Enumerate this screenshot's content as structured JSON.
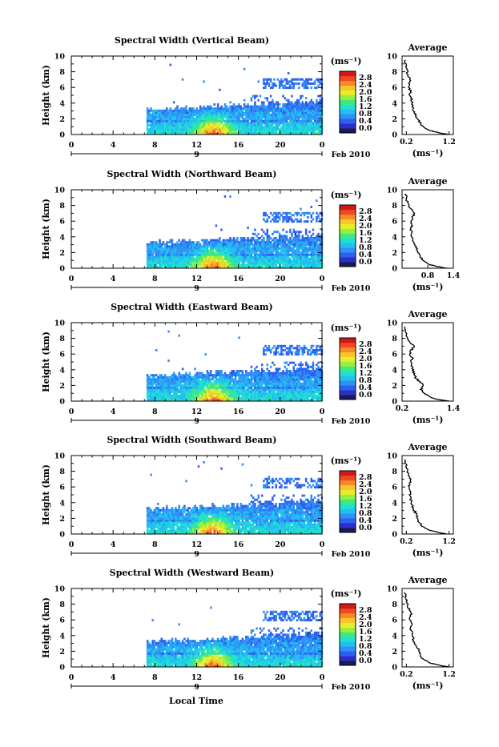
{
  "figure": {
    "xlabel": "Local Time",
    "date_label": "Feb 2010",
    "day_label": "9",
    "colorbar": {
      "unit_label": "(ms⁻¹)",
      "ticks": [
        "2.8",
        "2.4",
        "2.0",
        "1.6",
        "1.2",
        "0.8",
        "0.4",
        "0.0"
      ],
      "colors": [
        "#1a1a55",
        "#2b2fc9",
        "#2f5ff0",
        "#2f90f5",
        "#22c0f0",
        "#22e0d0",
        "#40e880",
        "#98ef40",
        "#e6ee2c",
        "#f8c62a",
        "#f58a26",
        "#ee4a22",
        "#d01818"
      ]
    },
    "average_title": "Average",
    "average_unit": "(ms⁻¹)"
  },
  "chart_data": [
    {
      "type": "heatmap",
      "title": "Spectral Width (Vertical Beam)",
      "xlabel": "Local Time",
      "ylabel": "Height (km)",
      "xlim": [
        0,
        24
      ],
      "ylim": [
        0,
        10
      ],
      "xticks": [
        "0",
        "4",
        "8",
        "12",
        "16",
        "20",
        "0"
      ],
      "yticks": [
        "10",
        "8",
        "6",
        "4",
        "2",
        "0"
      ],
      "data_start_hour": 7.2,
      "profile": {
        "title": "Average",
        "xlabel": "(ms⁻¹)",
        "xlim": [
          0.1,
          1.3
        ],
        "xticks": [
          "0.2",
          "1.2"
        ],
        "height": [
          0,
          0.25,
          0.5,
          1,
          1.5,
          2,
          2.5,
          3,
          3.5,
          4,
          4.5,
          5,
          5.5,
          6,
          6.5,
          7,
          7.5,
          8,
          8.5,
          9,
          9.5
        ],
        "width": [
          1.18,
          0.95,
          0.75,
          0.6,
          0.52,
          0.45,
          0.42,
          0.38,
          0.36,
          0.34,
          0.32,
          0.28,
          0.3,
          0.26,
          0.27,
          0.28,
          0.24,
          0.22,
          0.2,
          0.18,
          0.16
        ]
      }
    },
    {
      "type": "heatmap",
      "title": "Spectral Width (Northward Beam)",
      "xlabel": "Local Time",
      "ylabel": "Height (km)",
      "xlim": [
        0,
        24
      ],
      "ylim": [
        0,
        10
      ],
      "xticks": [
        "0",
        "4",
        "8",
        "12",
        "16",
        "20",
        "0"
      ],
      "yticks": [
        "10",
        "8",
        "6",
        "4",
        "2",
        "0"
      ],
      "data_start_hour": 7.2,
      "profile": {
        "title": "Average",
        "xlabel": "(ms⁻¹)",
        "xlim": [
          0.2,
          1.4
        ],
        "xticks": [
          "0.8",
          "1.4"
        ],
        "height": [
          0,
          0.25,
          0.5,
          1,
          1.5,
          2,
          2.5,
          3,
          3.5,
          4,
          4.5,
          5,
          5.5,
          6,
          6.5,
          7,
          7.5,
          8,
          8.5,
          9,
          9.5
        ],
        "width": [
          1.25,
          1.0,
          0.82,
          0.7,
          0.62,
          0.58,
          0.55,
          0.5,
          0.46,
          0.44,
          0.42,
          0.4,
          0.43,
          0.4,
          0.45,
          0.5,
          0.42,
          0.36,
          0.32,
          0.3,
          0.28
        ]
      }
    },
    {
      "type": "heatmap",
      "title": "Spectral Width (Eastward Beam)",
      "xlabel": "Local Time",
      "ylabel": "Height (km)",
      "xlim": [
        0,
        24
      ],
      "ylim": [
        0,
        10
      ],
      "xticks": [
        "0",
        "4",
        "8",
        "12",
        "16",
        "20",
        "0"
      ],
      "yticks": [
        "10",
        "8",
        "6",
        "4",
        "2",
        "0"
      ],
      "data_start_hour": 7.2,
      "profile": {
        "title": "Average",
        "xlabel": "(ms⁻¹)",
        "xlim": [
          0.2,
          1.4
        ],
        "xticks": [
          "0.2",
          "1.4"
        ],
        "height": [
          0,
          0.25,
          0.5,
          1,
          1.5,
          2,
          2.5,
          3,
          3.5,
          4,
          4.5,
          5,
          5.5,
          6,
          6.5,
          7,
          7.5,
          8,
          8.5,
          9,
          9.5
        ],
        "width": [
          1.3,
          1.0,
          0.85,
          0.72,
          0.64,
          0.7,
          0.6,
          0.52,
          0.48,
          0.46,
          0.42,
          0.4,
          0.44,
          0.38,
          0.42,
          0.48,
          0.36,
          0.32,
          0.3,
          0.28,
          0.26
        ]
      }
    },
    {
      "type": "heatmap",
      "title": "Spectral Width (Southward Beam)",
      "xlabel": "Local Time",
      "ylabel": "Height (km)",
      "xlim": [
        0,
        24
      ],
      "ylim": [
        0,
        10
      ],
      "xticks": [
        "0",
        "4",
        "8",
        "12",
        "16",
        "20",
        "0"
      ],
      "yticks": [
        "10",
        "8",
        "6",
        "4",
        "2",
        "0"
      ],
      "data_start_hour": 7.2,
      "profile": {
        "title": "Average",
        "xlabel": "(ms⁻¹)",
        "xlim": [
          0.1,
          1.3
        ],
        "xticks": [
          "0.2",
          "1.2"
        ],
        "height": [
          0,
          0.25,
          0.5,
          1,
          1.5,
          2,
          2.5,
          3,
          3.5,
          4,
          4.5,
          5,
          5.5,
          6,
          6.5,
          7,
          7.5,
          8,
          8.5,
          9,
          9.5
        ],
        "width": [
          1.15,
          0.92,
          0.72,
          0.58,
          0.5,
          0.46,
          0.44,
          0.38,
          0.34,
          0.32,
          0.3,
          0.28,
          0.3,
          0.26,
          0.28,
          0.3,
          0.24,
          0.22,
          0.2,
          0.18,
          0.16
        ]
      }
    },
    {
      "type": "heatmap",
      "title": "Spectral Width (Westward Beam)",
      "xlabel": "Local Time",
      "ylabel": "Height (km)",
      "xlim": [
        0,
        24
      ],
      "ylim": [
        0,
        10
      ],
      "xticks": [
        "0",
        "4",
        "8",
        "12",
        "16",
        "20",
        "0"
      ],
      "yticks": [
        "10",
        "8",
        "6",
        "4",
        "2",
        "0"
      ],
      "data_start_hour": 7.2,
      "profile": {
        "title": "Average",
        "xlabel": "(ms⁻¹)",
        "xlim": [
          0.1,
          1.3
        ],
        "xticks": [
          "0.2",
          "1.2"
        ],
        "height": [
          0,
          0.25,
          0.5,
          1,
          1.5,
          2,
          2.5,
          3,
          3.5,
          4,
          4.5,
          5,
          5.5,
          6,
          6.5,
          7,
          7.5,
          8,
          8.5,
          9,
          9.5
        ],
        "width": [
          1.18,
          0.95,
          0.74,
          0.6,
          0.52,
          0.5,
          0.46,
          0.4,
          0.36,
          0.34,
          0.32,
          0.3,
          0.34,
          0.28,
          0.3,
          0.32,
          0.26,
          0.22,
          0.2,
          0.18,
          0.16
        ]
      }
    }
  ]
}
